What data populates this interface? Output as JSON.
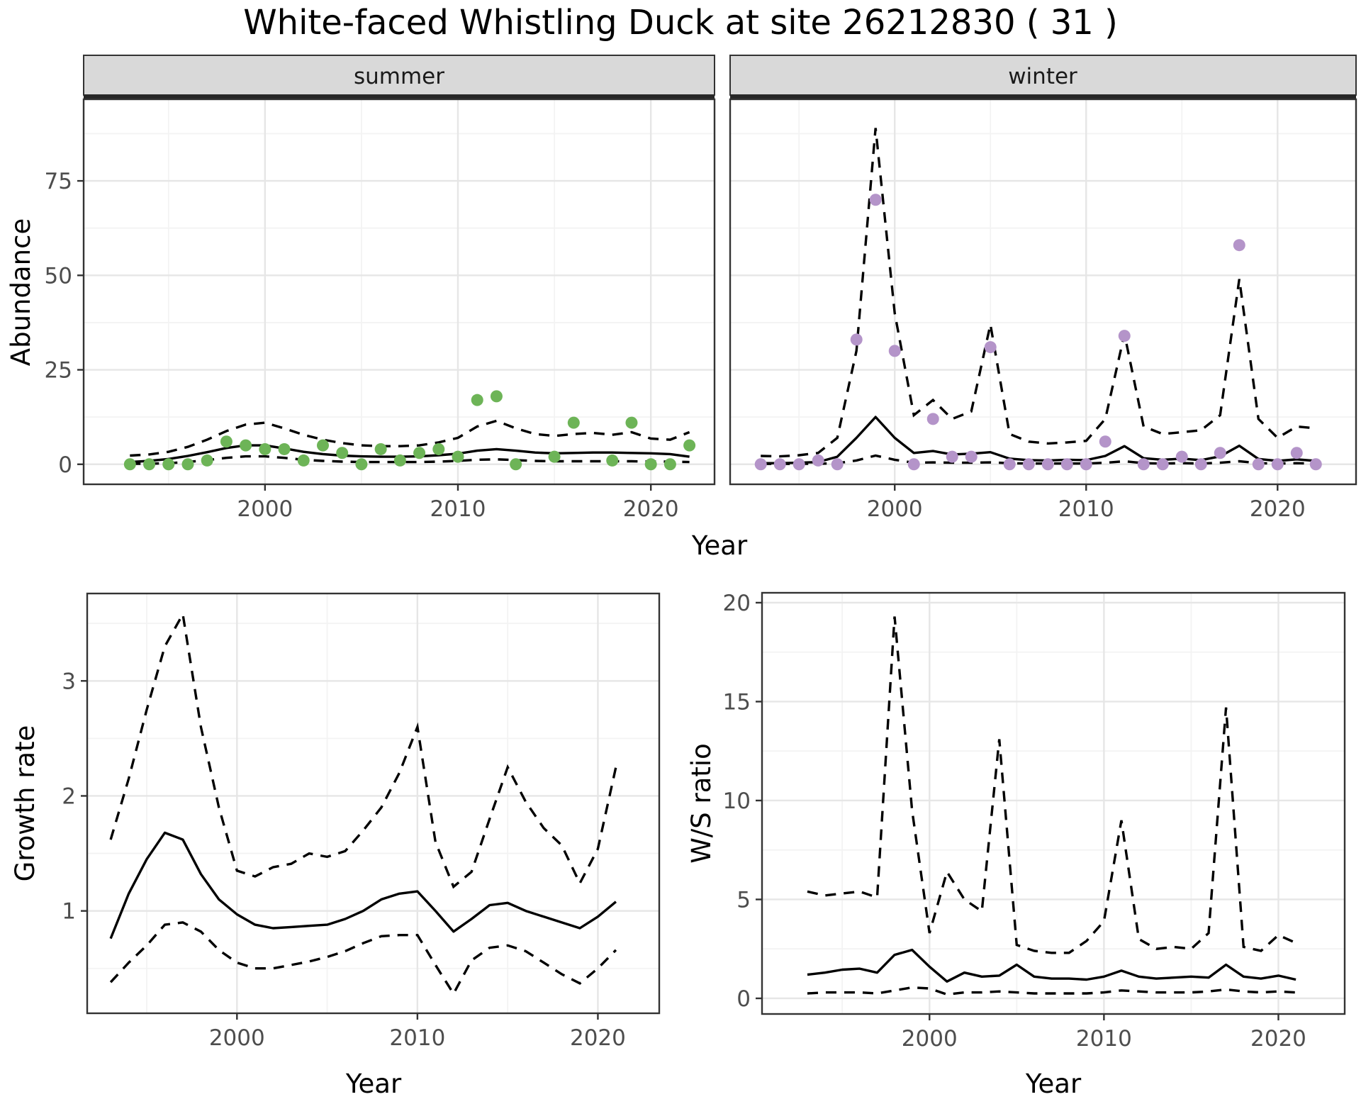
{
  "page": {
    "title": "White-faced Whistling Duck at site 26212830 ( 31 )",
    "background": "#ffffff"
  },
  "facets": {
    "summer_label": "summer",
    "winter_label": "winter"
  },
  "axes": {
    "year_label": "Year",
    "abundance_label": "Abundance",
    "growth_label": "Growth rate",
    "ratio_label": "W/S ratio",
    "year_ticks": [
      2000,
      2010,
      2020
    ],
    "abundance_ticks": [
      0,
      25,
      50,
      75
    ],
    "growth_ticks": [
      1,
      2,
      3
    ],
    "ratio_ticks": [
      0,
      5,
      10,
      15,
      20
    ]
  },
  "colors": {
    "summer_points": "#6db457",
    "winter_points": "#b494c9",
    "fit_line": "#000000",
    "interval_line": "#000000",
    "strip_bg": "#d9d9d9",
    "strip_border": "#333333",
    "strip_underline": "#262626",
    "panel_border": "#333333",
    "grid_major": "#e6e6e6",
    "grid_minor": "#f3f3f3",
    "tick_mark": "#333333"
  },
  "chart_data": [
    {
      "name": "summer",
      "type": "scatter",
      "title": "summer",
      "xlabel": "Year",
      "ylabel": "Abundance",
      "ylim": [
        -5,
        96
      ],
      "xlim": [
        1991,
        2023
      ],
      "grid": true,
      "legend": false,
      "points": [
        [
          1993,
          0
        ],
        [
          1994,
          0
        ],
        [
          1995,
          0
        ],
        [
          1996,
          0
        ],
        [
          1997,
          1
        ],
        [
          1998,
          6
        ],
        [
          1999,
          5
        ],
        [
          2000,
          4
        ],
        [
          2001,
          4
        ],
        [
          2002,
          1
        ],
        [
          2003,
          5
        ],
        [
          2004,
          3
        ],
        [
          2005,
          0
        ],
        [
          2006,
          4
        ],
        [
          2007,
          1
        ],
        [
          2008,
          3
        ],
        [
          2009,
          4
        ],
        [
          2010,
          2
        ],
        [
          2011,
          17
        ],
        [
          2012,
          18
        ],
        [
          2013,
          0
        ],
        [
          2015,
          2
        ],
        [
          2016,
          11
        ],
        [
          2018,
          1
        ],
        [
          2019,
          11
        ],
        [
          2020,
          0
        ],
        [
          2021,
          0
        ],
        [
          2022,
          5
        ]
      ],
      "fit_start": 1993,
      "fit": [
        0.6,
        0.9,
        1.4,
        2.2,
        3.2,
        4.3,
        5.0,
        5.0,
        4.2,
        3.3,
        2.7,
        2.3,
        2.1,
        2.0,
        2.0,
        2.1,
        2.4,
        2.8,
        3.6,
        4.0,
        3.6,
        3.1,
        2.9,
        3.0,
        3.1,
        3.1,
        3.0,
        2.9,
        2.7,
        2.0
      ],
      "upper": [
        2.3,
        2.6,
        3.3,
        4.6,
        6.5,
        8.8,
        10.5,
        11.0,
        9.5,
        7.8,
        6.5,
        5.6,
        5.0,
        4.8,
        4.8,
        5.0,
        5.8,
        7.0,
        10.0,
        11.5,
        9.5,
        8.0,
        7.5,
        8.0,
        8.3,
        7.8,
        8.5,
        6.8,
        6.5,
        8.5
      ],
      "lower": [
        0.1,
        0.15,
        0.3,
        0.6,
        1.1,
        1.7,
        2.1,
        2.1,
        1.7,
        1.2,
        0.9,
        0.7,
        0.6,
        0.6,
        0.6,
        0.6,
        0.7,
        0.9,
        1.2,
        1.3,
        1.1,
        0.9,
        0.8,
        0.8,
        0.8,
        0.8,
        0.8,
        0.7,
        0.7,
        0.6
      ]
    },
    {
      "name": "winter",
      "type": "scatter",
      "title": "winter",
      "xlabel": "Year",
      "ylabel": "Abundance",
      "ylim": [
        -5,
        96
      ],
      "xlim": [
        1991,
        2024
      ],
      "grid": true,
      "legend": false,
      "points": [
        [
          1993,
          0
        ],
        [
          1994,
          0
        ],
        [
          1995,
          0
        ],
        [
          1996,
          1
        ],
        [
          1997,
          0
        ],
        [
          1998,
          33
        ],
        [
          1999,
          70
        ],
        [
          2000,
          30
        ],
        [
          2001,
          0
        ],
        [
          2002,
          12
        ],
        [
          2003,
          2
        ],
        [
          2004,
          2
        ],
        [
          2005,
          31
        ],
        [
          2006,
          0
        ],
        [
          2007,
          0
        ],
        [
          2008,
          0
        ],
        [
          2009,
          0
        ],
        [
          2010,
          0
        ],
        [
          2011,
          6
        ],
        [
          2012,
          34
        ],
        [
          2013,
          0
        ],
        [
          2014,
          0
        ],
        [
          2015,
          2
        ],
        [
          2016,
          0
        ],
        [
          2017,
          3
        ],
        [
          2018,
          58
        ],
        [
          2019,
          0
        ],
        [
          2020,
          0
        ],
        [
          2021,
          3
        ],
        [
          2022,
          0
        ]
      ],
      "fit_start": 1993,
      "fit": [
        0.3,
        0.3,
        0.4,
        0.6,
        2.0,
        7.0,
        12.5,
        7.0,
        3.0,
        3.5,
        2.6,
        2.8,
        3.2,
        1.5,
        1.1,
        1.0,
        1.2,
        1.1,
        2.2,
        4.8,
        1.6,
        1.2,
        1.5,
        1.1,
        2.1,
        4.9,
        1.4,
        0.9,
        1.3,
        0.9
      ],
      "upper": [
        2.2,
        2.1,
        2.4,
        3.0,
        7.0,
        30.0,
        89.0,
        40.0,
        13.0,
        17.0,
        12.0,
        14.0,
        37.0,
        8.0,
        6.0,
        5.5,
        5.8,
        6.2,
        12.0,
        34.5,
        10.0,
        8.0,
        8.5,
        9.0,
        13.0,
        49.0,
        12.0,
        7.0,
        10.0,
        9.5
      ],
      "lower": [
        0.1,
        0.1,
        0.1,
        0.15,
        0.3,
        1.0,
        2.3,
        1.2,
        0.4,
        0.5,
        0.4,
        0.4,
        0.5,
        0.3,
        0.2,
        0.2,
        0.2,
        0.2,
        0.4,
        0.8,
        0.3,
        0.2,
        0.3,
        0.2,
        0.4,
        0.8,
        0.3,
        0.2,
        0.3,
        0.2
      ]
    },
    {
      "name": "growth",
      "type": "line",
      "title": "Growth rate",
      "xlabel": "Year",
      "ylabel": "Growth rate",
      "ylim": [
        0.1,
        3.8
      ],
      "xlim": [
        1992,
        2023
      ],
      "grid": true,
      "legend": false,
      "points": [],
      "fit_start": 1993,
      "fit": [
        0.76,
        1.15,
        1.45,
        1.68,
        1.62,
        1.32,
        1.1,
        0.97,
        0.88,
        0.85,
        0.86,
        0.87,
        0.88,
        0.93,
        1.0,
        1.1,
        1.15,
        1.17,
        1.0,
        0.82,
        0.93,
        1.05,
        1.07,
        1.0,
        0.95,
        0.9,
        0.85,
        0.95,
        1.08
      ],
      "upper": [
        1.62,
        2.15,
        2.75,
        3.3,
        3.58,
        2.6,
        1.9,
        1.35,
        1.3,
        1.38,
        1.41,
        1.5,
        1.47,
        1.52,
        1.7,
        1.9,
        2.2,
        2.6,
        1.6,
        1.21,
        1.34,
        1.8,
        2.25,
        1.95,
        1.72,
        1.57,
        1.24,
        1.54,
        2.25
      ],
      "lower": [
        0.38,
        0.55,
        0.7,
        0.88,
        0.9,
        0.82,
        0.66,
        0.55,
        0.5,
        0.5,
        0.53,
        0.56,
        0.6,
        0.65,
        0.72,
        0.78,
        0.79,
        0.79,
        0.53,
        0.28,
        0.57,
        0.68,
        0.7,
        0.65,
        0.55,
        0.45,
        0.37,
        0.5,
        0.66
      ]
    },
    {
      "name": "ratio",
      "type": "line",
      "title": "W/S ratio",
      "xlabel": "Year",
      "ylabel": "W/S ratio",
      "ylim": [
        -0.8,
        20.5
      ],
      "xlim": [
        1990,
        2024
      ],
      "grid": true,
      "legend": false,
      "points": [],
      "fit_start": 1993,
      "fit": [
        1.2,
        1.3,
        1.45,
        1.5,
        1.3,
        2.2,
        2.45,
        1.6,
        0.85,
        1.3,
        1.1,
        1.15,
        1.7,
        1.1,
        1.0,
        1.0,
        0.95,
        1.1,
        1.4,
        1.1,
        1.0,
        1.05,
        1.1,
        1.05,
        1.7,
        1.1,
        1.0,
        1.15,
        0.95
      ],
      "upper": [
        5.4,
        5.2,
        5.3,
        5.4,
        5.1,
        19.3,
        9.5,
        3.3,
        6.4,
        5.0,
        4.4,
        13.1,
        2.7,
        2.4,
        2.3,
        2.3,
        2.9,
        3.9,
        9.0,
        3.0,
        2.5,
        2.6,
        2.5,
        3.3,
        14.7,
        2.6,
        2.4,
        3.2,
        2.8
      ],
      "lower": [
        0.25,
        0.3,
        0.3,
        0.3,
        0.25,
        0.4,
        0.55,
        0.5,
        0.2,
        0.3,
        0.3,
        0.35,
        0.3,
        0.25,
        0.25,
        0.25,
        0.25,
        0.3,
        0.4,
        0.35,
        0.3,
        0.3,
        0.3,
        0.35,
        0.45,
        0.35,
        0.3,
        0.35,
        0.3
      ]
    }
  ]
}
